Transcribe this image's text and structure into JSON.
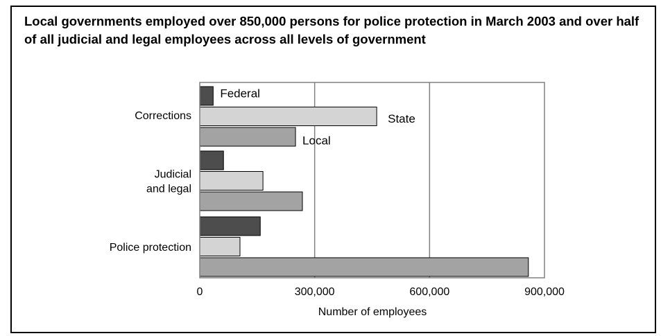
{
  "chart_data": {
    "type": "bar",
    "orientation": "horizontal",
    "title": "Local governments employed over 850,000 persons for police protection in March 2003 and over half of all judicial and legal employees across all levels of government",
    "categories": [
      "Corrections",
      "Judicial and legal",
      "Police protection"
    ],
    "category_lines": [
      [
        "Corrections"
      ],
      [
        "Judicial",
        "and legal"
      ],
      [
        "Police protection"
      ]
    ],
    "series": [
      {
        "name": "Federal",
        "values": [
          35000,
          62000,
          158000
        ],
        "color": "#4d4d4d"
      },
      {
        "name": "State",
        "values": [
          462000,
          165000,
          105000
        ],
        "color": "#d4d4d4"
      },
      {
        "name": "Local",
        "values": [
          250000,
          268000,
          858000
        ],
        "color": "#a3a3a3"
      }
    ],
    "xlabel": "Number of employees",
    "ylabel": "",
    "xlim": [
      0,
      900000
    ],
    "xticks": [
      0,
      300000,
      600000,
      900000
    ],
    "xtick_labels": [
      "0",
      "300,000",
      "600,000",
      "900,000"
    ],
    "grid": true,
    "legend": "inline labels beside the Corrections bars"
  }
}
